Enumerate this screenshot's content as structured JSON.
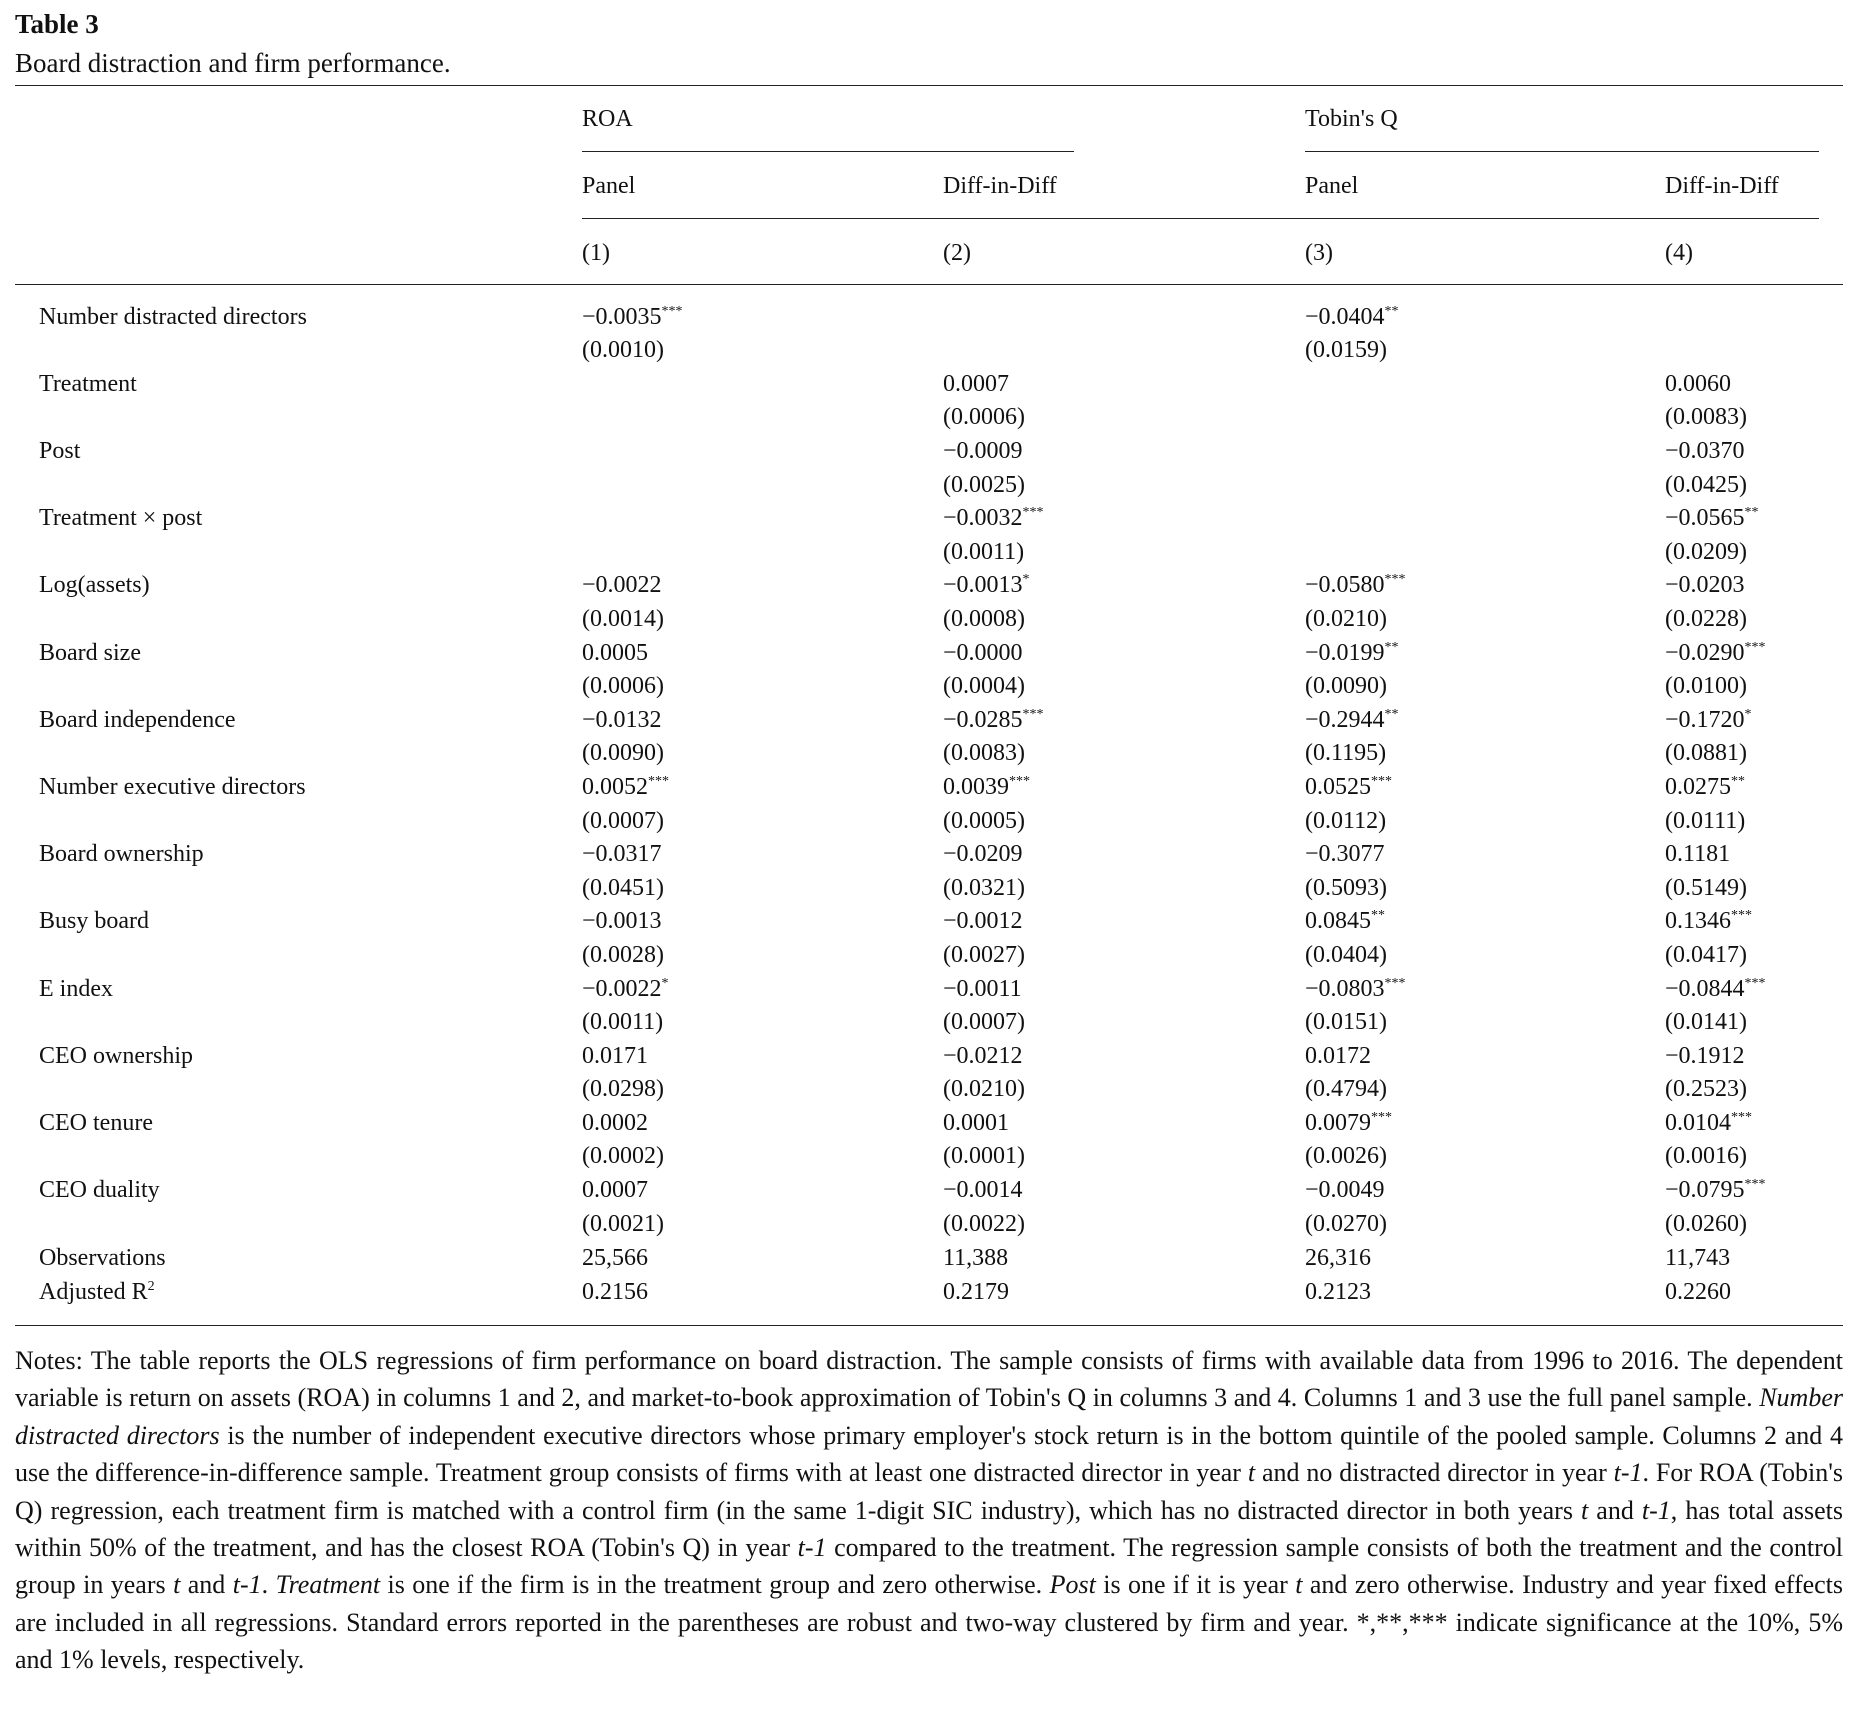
{
  "title": "Table 3",
  "subtitle": "Board distraction and firm performance.",
  "table": {
    "groups": [
      "ROA",
      "Tobin's Q"
    ],
    "models": [
      "Panel",
      "Diff-in-Diff",
      "Panel",
      "Diff-in-Diff"
    ],
    "numbers": [
      "(1)",
      "(2)",
      "(3)",
      "(4)"
    ],
    "rows": [
      {
        "label": "Number distracted directors",
        "cells": [
          {
            "coef": "−0.0035",
            "stars": "***",
            "se": "(0.0010)"
          },
          null,
          {
            "coef": "−0.0404",
            "stars": "**",
            "se": "(0.0159)"
          },
          null
        ]
      },
      {
        "label": "Treatment",
        "cells": [
          null,
          {
            "coef": "0.0007",
            "se": "(0.0006)"
          },
          null,
          {
            "coef": "0.0060",
            "se": "(0.0083)"
          }
        ]
      },
      {
        "label": "Post",
        "cells": [
          null,
          {
            "coef": "−0.0009",
            "se": "(0.0025)"
          },
          null,
          {
            "coef": "−0.0370",
            "se": "(0.0425)"
          }
        ]
      },
      {
        "label": "Treatment × post",
        "cells": [
          null,
          {
            "coef": "−0.0032",
            "stars": "***",
            "se": "(0.0011)"
          },
          null,
          {
            "coef": "−0.0565",
            "stars": "**",
            "se": "(0.0209)"
          }
        ]
      },
      {
        "label": "Log(assets)",
        "cells": [
          {
            "coef": "−0.0022",
            "se": "(0.0014)"
          },
          {
            "coef": "−0.0013",
            "stars": "*",
            "se": "(0.0008)"
          },
          {
            "coef": "−0.0580",
            "stars": "***",
            "se": "(0.0210)"
          },
          {
            "coef": "−0.0203",
            "se": "(0.0228)"
          }
        ]
      },
      {
        "label": "Board size",
        "cells": [
          {
            "coef": "0.0005",
            "se": "(0.0006)"
          },
          {
            "coef": "−0.0000",
            "se": "(0.0004)"
          },
          {
            "coef": "−0.0199",
            "stars": "**",
            "se": "(0.0090)"
          },
          {
            "coef": "−0.0290",
            "stars": "***",
            "se": "(0.0100)"
          }
        ]
      },
      {
        "label": "Board independence",
        "cells": [
          {
            "coef": "−0.0132",
            "se": "(0.0090)"
          },
          {
            "coef": "−0.0285",
            "stars": "***",
            "se": "(0.0083)"
          },
          {
            "coef": "−0.2944",
            "stars": "**",
            "se": "(0.1195)"
          },
          {
            "coef": "−0.1720",
            "stars": "*",
            "se": "(0.0881)"
          }
        ]
      },
      {
        "label": "Number executive directors",
        "cells": [
          {
            "coef": "0.0052",
            "stars": "***",
            "se": "(0.0007)"
          },
          {
            "coef": "0.0039",
            "stars": "***",
            "se": "(0.0005)"
          },
          {
            "coef": "0.0525",
            "stars": "***",
            "se": "(0.0112)"
          },
          {
            "coef": "0.0275",
            "stars": "**",
            "se": "(0.0111)"
          }
        ]
      },
      {
        "label": "Board ownership",
        "cells": [
          {
            "coef": "−0.0317",
            "se": "(0.0451)"
          },
          {
            "coef": "−0.0209",
            "se": "(0.0321)"
          },
          {
            "coef": "−0.3077",
            "se": "(0.5093)"
          },
          {
            "coef": "0.1181",
            "se": "(0.5149)"
          }
        ]
      },
      {
        "label": "Busy board",
        "cells": [
          {
            "coef": "−0.0013",
            "se": "(0.0028)"
          },
          {
            "coef": "−0.0012",
            "se": "(0.0027)"
          },
          {
            "coef": "0.0845",
            "stars": "**",
            "se": "(0.0404)"
          },
          {
            "coef": "0.1346",
            "stars": "***",
            "se": "(0.0417)"
          }
        ]
      },
      {
        "label": "E index",
        "cells": [
          {
            "coef": "−0.0022",
            "stars": "*",
            "se": "(0.0011)"
          },
          {
            "coef": "−0.0011",
            "se": "(0.0007)"
          },
          {
            "coef": "−0.0803",
            "stars": "***",
            "se": "(0.0151)"
          },
          {
            "coef": "−0.0844",
            "stars": "***",
            "se": "(0.0141)"
          }
        ]
      },
      {
        "label": "CEO ownership",
        "cells": [
          {
            "coef": "0.0171",
            "se": "(0.0298)"
          },
          {
            "coef": "−0.0212",
            "se": "(0.0210)"
          },
          {
            "coef": "0.0172",
            "se": "(0.4794)"
          },
          {
            "coef": "−0.1912",
            "se": "(0.2523)"
          }
        ]
      },
      {
        "label": "CEO tenure",
        "cells": [
          {
            "coef": "0.0002",
            "se": "(0.0002)"
          },
          {
            "coef": "0.0001",
            "se": "(0.0001)"
          },
          {
            "coef": "0.0079",
            "stars": "***",
            "se": "(0.0026)"
          },
          {
            "coef": "0.0104",
            "stars": "***",
            "se": "(0.0016)"
          }
        ]
      },
      {
        "label": "CEO duality",
        "cells": [
          {
            "coef": "0.0007",
            "se": "(0.0021)"
          },
          {
            "coef": "−0.0014",
            "se": "(0.0022)"
          },
          {
            "coef": "−0.0049",
            "se": "(0.0270)"
          },
          {
            "coef": "−0.0795",
            "stars": "***",
            "se": "(0.0260)"
          }
        ]
      }
    ],
    "stats": [
      {
        "label": "Observations",
        "values": [
          "25,566",
          "11,388",
          "26,316",
          "11,743"
        ]
      },
      {
        "label": "Adjusted R",
        "label_sup": "2",
        "values": [
          "0.2156",
          "0.2179",
          "0.2123",
          "0.2260"
        ]
      }
    ]
  },
  "notes": [
    "Notes: The table reports the OLS regressions of firm performance on board distraction. The sample consists of firms with available data from 1996 to 2016. The dependent variable is return on assets (ROA) in columns 1 and 2, and market-to-book approximation of Tobin's Q in columns 3 and 4. Columns 1 and 3 use the full panel sample. ",
    "Number distracted directors",
    " is the number of independent executive directors whose primary employer's stock return is in the bottom quintile of the pooled sample. Columns 2 and 4 use the difference-in-difference sample. Treatment group consists of firms with at least one distracted director in year ",
    "t",
    " and no distracted director in year ",
    "t-1",
    ". For ROA (Tobin's Q) regression, each treatment firm is matched with a control firm (in the same 1-digit SIC industry), which has no distracted director in both years ",
    "t",
    " and ",
    "t-1",
    ", has total assets within 50% of the treatment, and has the closest ROA (Tobin's Q) in year ",
    "t-1",
    " compared to the treatment. The regression sample consists of both the treatment and the control group in years ",
    "t",
    " and ",
    "t-1",
    ". ",
    "Treatment",
    " is one if the firm is in the treatment group and zero otherwise. ",
    "Post",
    " is one if it is year ",
    "t",
    " and zero otherwise. Industry and year fixed effects are included in all regressions. Standard errors reported in the parentheses are robust and two-way clustered by firm and year. *,**,*** indicate significance at the 10%, 5% and 1% levels, respectively."
  ]
}
